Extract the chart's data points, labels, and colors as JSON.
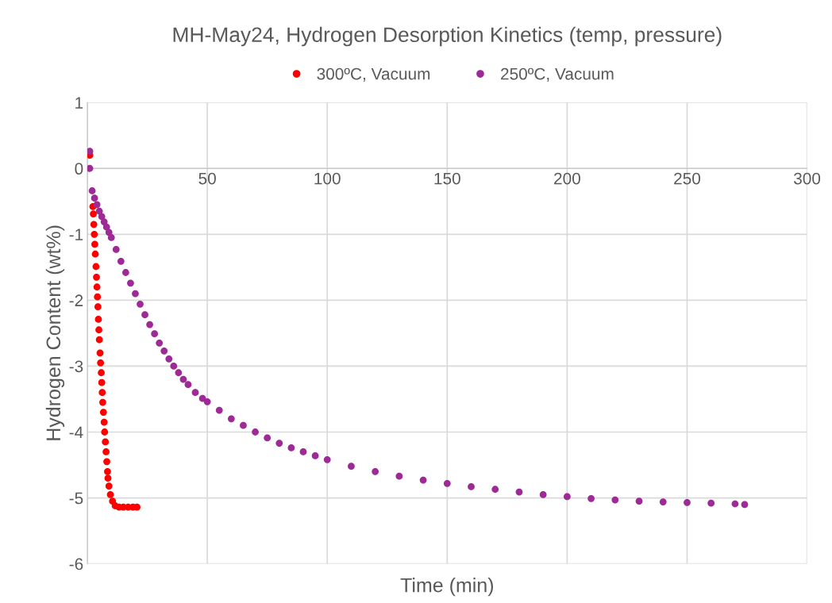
{
  "chart_data": {
    "type": "scatter",
    "title": "MH-May24, Hydrogen Desorption Kinetics (temp, pressure)",
    "xlabel": "Time (min)",
    "ylabel": "Hydrogen Content (wt%)",
    "xlim": [
      0,
      300
    ],
    "ylim": [
      -6,
      1
    ],
    "xticks": [
      {
        "value": 0,
        "label": null
      },
      50,
      100,
      150,
      200,
      250,
      300
    ],
    "yticks": [
      -6,
      -5,
      -4,
      -3,
      -2,
      -1,
      0,
      1
    ],
    "grid": true,
    "legend": "top",
    "marker": "circle",
    "series": [
      {
        "name": "300ºC, Vacuum",
        "color": "#ff0000",
        "x": [
          1,
          2.3,
          2.5,
          2.7,
          2.9,
          3.1,
          3.3,
          3.6,
          3.8,
          4.0,
          4.2,
          4.4,
          4.6,
          4.8,
          5.0,
          5.3,
          5.5,
          5.8,
          6.0,
          6.2,
          6.4,
          6.7,
          7.0,
          7.2,
          7.5,
          7.8,
          8.1,
          8.4,
          8.6,
          9.0,
          9.6,
          10.5,
          11.6,
          13.2,
          15,
          17,
          19,
          20.7
        ],
        "values": [
          0.2,
          -0.58,
          -0.69,
          -0.85,
          -1.0,
          -1.15,
          -1.3,
          -1.49,
          -1.65,
          -1.8,
          -1.95,
          -2.1,
          -2.29,
          -2.45,
          -2.6,
          -2.8,
          -2.95,
          -3.1,
          -3.25,
          -3.4,
          -3.55,
          -3.7,
          -3.85,
          -4.0,
          -4.15,
          -4.3,
          -4.45,
          -4.6,
          -4.7,
          -4.82,
          -4.95,
          -5.05,
          -5.12,
          -5.14,
          -5.14,
          -5.14,
          -5.14,
          -5.14
        ]
      },
      {
        "name": "250ºC, Vacuum",
        "color": "#9e2a96",
        "x": [
          1,
          1,
          2,
          3,
          4,
          5,
          6,
          7,
          8,
          9,
          10,
          12,
          14,
          16,
          18,
          20,
          22,
          24,
          26,
          28,
          30,
          32,
          34,
          36,
          38,
          40,
          42,
          45,
          48,
          50,
          55,
          60,
          65,
          70,
          75,
          80,
          85,
          90,
          95,
          100,
          110,
          120,
          130,
          140,
          150,
          160,
          170,
          180,
          190,
          200,
          210,
          220,
          230,
          240,
          250,
          260,
          270,
          274
        ],
        "values": [
          0.26,
          0,
          -0.34,
          -0.45,
          -0.55,
          -0.65,
          -0.73,
          -0.81,
          -0.89,
          -0.97,
          -1.05,
          -1.23,
          -1.41,
          -1.58,
          -1.74,
          -1.9,
          -2.06,
          -2.22,
          -2.37,
          -2.51,
          -2.65,
          -2.77,
          -2.89,
          -3.0,
          -3.1,
          -3.2,
          -3.28,
          -3.4,
          -3.49,
          -3.54,
          -3.67,
          -3.8,
          -3.9,
          -4.0,
          -4.09,
          -4.17,
          -4.24,
          -4.3,
          -4.36,
          -4.42,
          -4.52,
          -4.6,
          -4.67,
          -4.73,
          -4.78,
          -4.83,
          -4.87,
          -4.91,
          -4.95,
          -4.98,
          -5.01,
          -5.03,
          -5.05,
          -5.06,
          -5.07,
          -5.08,
          -5.09,
          -5.1
        ]
      }
    ]
  }
}
